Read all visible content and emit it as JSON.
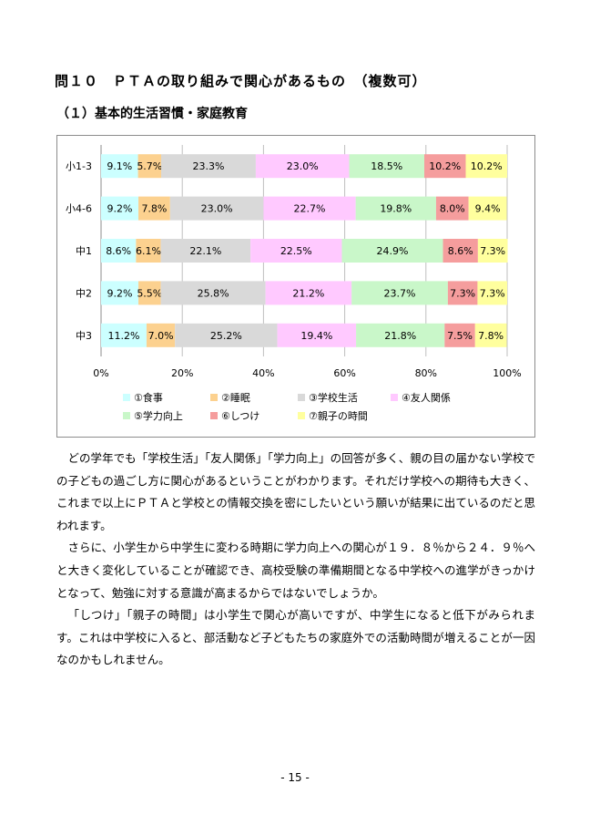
{
  "title": "問１０　ＰＴＡの取り組みで関心があるもの　（複数可）",
  "subtitle": "（１）基本的生活習慣・家庭教育",
  "chart_data": {
    "type": "bar",
    "orientation": "horizontal",
    "stacked": true,
    "categories": [
      "小1-3",
      "小4-6",
      "中1",
      "中2",
      "中3"
    ],
    "series": [
      {
        "name": "①食事",
        "color": "#ccffff",
        "values": [
          9.1,
          9.2,
          8.6,
          9.2,
          11.2
        ]
      },
      {
        "name": "②睡眠",
        "color": "#fcd18f",
        "values": [
          5.7,
          7.8,
          6.1,
          5.5,
          7.0
        ]
      },
      {
        "name": "③学校生活",
        "color": "#d9d9d9",
        "values": [
          23.3,
          23.0,
          22.1,
          25.8,
          25.2
        ]
      },
      {
        "name": "④友人関係",
        "color": "#ffc9ff",
        "values": [
          23.0,
          22.7,
          22.5,
          21.2,
          19.4
        ]
      },
      {
        "name": "⑤学力向上",
        "color": "#c9f7c9",
        "values": [
          18.5,
          19.8,
          24.9,
          23.7,
          21.8
        ]
      },
      {
        "name": "⑥しつけ",
        "color": "#f59d9d",
        "values": [
          10.2,
          8.0,
          8.6,
          7.3,
          7.5
        ]
      },
      {
        "name": "⑦親子の時間",
        "color": "#ffff9e",
        "values": [
          10.2,
          9.4,
          7.3,
          7.3,
          7.8
        ]
      }
    ],
    "data_labels": [
      [
        "9.1%",
        "5.7%",
        "23.3%",
        "23.0%",
        "18.5%",
        "10.2%",
        "10.2%"
      ],
      [
        "9.2%",
        "7.8%",
        "23.0%",
        "22.7%",
        "19.8%",
        "8.0%",
        "9.4%"
      ],
      [
        "8.6%",
        "6.1%",
        "22.1%",
        "22.5%",
        "24.9%",
        "8.6%",
        "7.3%"
      ],
      [
        "9.2%",
        "5.5%",
        "25.8%",
        "21.2%",
        "23.7%",
        "7.3%",
        "7.3%"
      ],
      [
        "11.2%",
        "7.0%",
        "25.2%",
        "19.4%",
        "21.8%",
        "7.5%",
        "7.8%"
      ]
    ],
    "xlim": [
      0,
      100
    ],
    "xticks": [
      0,
      20,
      40,
      60,
      80,
      100
    ],
    "xtick_labels": [
      "0%",
      "20%",
      "40%",
      "60%",
      "80%",
      "100%"
    ],
    "grid": true,
    "legend_position": "bottom"
  },
  "paragraphs": [
    "どの学年でも「学校生活」「友人関係」「学力向上」の回答が多く、親の目の届かない学校での子どもの過ごし方に関心があるということがわかります。それだけ学校への期待も大きく、これまで以上にＰＴＡと学校との情報交換を密にしたいという願いが結果に出ているのだと思われます。",
    "さらに、小学生から中学生に変わる時期に学力向上への関心が１９．８％から２４．９％へと大きく変化していることが確認でき、高校受験の準備期間となる中学校への進学がきっかけとなって、勉強に対する意識が高まるからではないでしょうか。",
    "「しつけ」「親子の時間」は小学生で関心が高いですが、中学生になると低下がみられます。これは中学校に入ると、部活動など子どもたちの家庭外での活動時間が増えることが一因なのかもしれません。"
  ],
  "page_number": "- 15 -"
}
